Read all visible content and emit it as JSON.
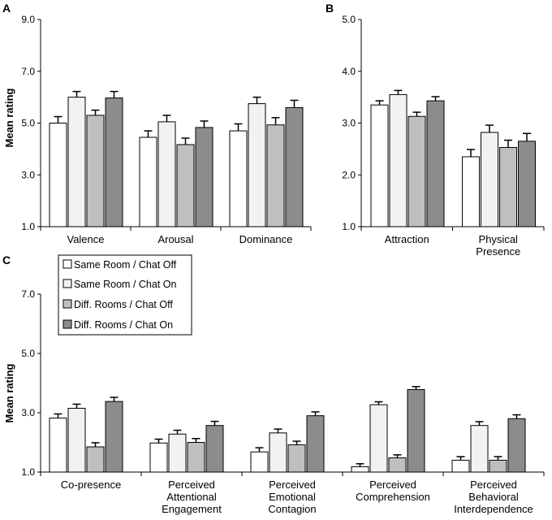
{
  "colors": {
    "series": [
      "#ffffff",
      "#f2f2f2",
      "#bfbfbf",
      "#8c8c8c"
    ],
    "stroke": "#000000"
  },
  "legend": {
    "entries": [
      "Same Room / Chat Off",
      "Same Room / Chat On",
      "Diff. Rooms / Chat Off",
      "Diff. Rooms / Chat On"
    ]
  },
  "chart_data": [
    {
      "panel": "A",
      "type": "bar",
      "ylabel": "Mean rating",
      "ylim": [
        1.0,
        9.0
      ],
      "yticks": [
        "1.0",
        "3.0",
        "5.0",
        "7.0",
        "9.0"
      ],
      "categories": [
        [
          "Valence"
        ],
        [
          "Arousal"
        ],
        [
          "Dominance"
        ]
      ],
      "series": [
        {
          "name": "Same Room / Chat Off",
          "values": [
            5.0,
            4.45,
            4.7
          ],
          "errors": [
            0.25,
            0.25,
            0.27
          ]
        },
        {
          "name": "Same Room / Chat On",
          "values": [
            6.0,
            5.05,
            5.75
          ],
          "errors": [
            0.22,
            0.25,
            0.25
          ]
        },
        {
          "name": "Diff. Rooms / Chat Off",
          "values": [
            5.3,
            4.17,
            4.93
          ],
          "errors": [
            0.2,
            0.25,
            0.28
          ]
        },
        {
          "name": "Diff. Rooms / Chat On",
          "values": [
            5.97,
            4.83,
            5.6
          ],
          "errors": [
            0.25,
            0.25,
            0.28
          ]
        }
      ]
    },
    {
      "panel": "B",
      "type": "bar",
      "ylabel": "",
      "ylim": [
        1.0,
        5.0
      ],
      "yticks": [
        "1.0",
        "2.0",
        "3.0",
        "4.0",
        "5.0"
      ],
      "categories": [
        [
          "Attraction"
        ],
        [
          "Physical",
          "Presence"
        ]
      ],
      "series": [
        {
          "name": "Same Room / Chat Off",
          "values": [
            3.35,
            2.35
          ],
          "errors": [
            0.08,
            0.14
          ]
        },
        {
          "name": "Same Room / Chat On",
          "values": [
            3.55,
            2.82
          ],
          "errors": [
            0.08,
            0.14
          ]
        },
        {
          "name": "Diff. Rooms / Chat Off",
          "values": [
            3.13,
            2.53
          ],
          "errors": [
            0.08,
            0.14
          ]
        },
        {
          "name": "Diff. Rooms / Chat On",
          "values": [
            3.43,
            2.65
          ],
          "errors": [
            0.08,
            0.15
          ]
        }
      ]
    },
    {
      "panel": "C",
      "type": "bar",
      "ylabel": "Mean rating",
      "ylim": [
        1.0,
        7.0
      ],
      "yticks": [
        "1.0",
        "3.0",
        "5.0",
        "7.0"
      ],
      "categories": [
        [
          "Co-presence"
        ],
        [
          "Perceived",
          "Attentional",
          "Engagement"
        ],
        [
          "Perceived",
          "Emotional",
          "Contagion"
        ],
        [
          "Perceived",
          "Comprehension"
        ],
        [
          "Perceived",
          "Behavioral",
          "Interdependence"
        ]
      ],
      "series": [
        {
          "name": "Same Room / Chat Off",
          "values": [
            2.82,
            1.98,
            1.68,
            1.18,
            1.4
          ],
          "errors": [
            0.14,
            0.13,
            0.14,
            0.1,
            0.12
          ]
        },
        {
          "name": "Same Room / Chat On",
          "values": [
            3.15,
            2.28,
            2.32,
            3.27,
            2.57
          ],
          "errors": [
            0.14,
            0.13,
            0.13,
            0.1,
            0.13
          ]
        },
        {
          "name": "Diff. Rooms / Chat Off",
          "values": [
            1.85,
            2.0,
            1.92,
            1.48,
            1.4
          ],
          "errors": [
            0.14,
            0.13,
            0.12,
            0.1,
            0.12
          ]
        },
        {
          "name": "Diff. Rooms / Chat On",
          "values": [
            3.38,
            2.57,
            2.9,
            3.78,
            2.8
          ],
          "errors": [
            0.14,
            0.14,
            0.13,
            0.1,
            0.13
          ]
        }
      ]
    }
  ]
}
